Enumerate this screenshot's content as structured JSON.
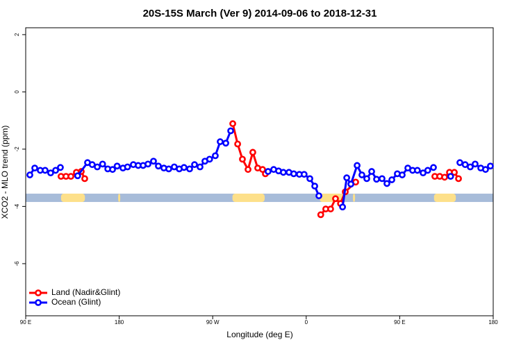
{
  "chart_data": {
    "type": "line",
    "title": "20S-15S March (Ver 9)   2014-09-06 to 2018-12-31",
    "xlabel": "Longitude (deg E)",
    "ylabel": "XCO2 - MLO trend (ppm)",
    "xlim": [
      90,
      540
    ],
    "ylim": [
      -7.82,
      2.24
    ],
    "xticks": [
      {
        "value": 90,
        "label": "90 E"
      },
      {
        "value": 180,
        "label": "180"
      },
      {
        "value": 270,
        "label": "90 W"
      },
      {
        "value": 360,
        "label": "0"
      },
      {
        "value": 450,
        "label": "90 E"
      },
      {
        "value": 540,
        "label": "180"
      }
    ],
    "yticks": [
      -6,
      -4,
      -2,
      0,
      2
    ],
    "legend": "bottom-left",
    "surface_strip": {
      "y": -3.7,
      "ocean_color": "#a7bcd9",
      "land_color": "#fde08a",
      "land_ranges": [
        [
          124,
          147
        ],
        [
          179,
          181
        ],
        [
          289,
          320
        ],
        [
          373,
          396
        ],
        [
          405,
          407
        ],
        [
          483,
          504
        ]
      ]
    },
    "series": [
      {
        "name": "Land (Nadir&Glint)",
        "color": "#ff0000",
        "x": [
          124,
          128.8,
          133.5,
          138.8,
          143.5,
          146.8,
          null,
          289.3,
          294,
          298.6,
          304,
          308.6,
          313.3,
          318,
          320.7,
          null,
          374,
          378.8,
          383.5,
          388.2,
          393,
          397.6,
          407.6,
          null,
          483.8,
          488.5,
          493.2,
          497.9,
          502.6,
          506.6
        ],
        "values": [
          -2.95,
          -2.95,
          -2.95,
          -2.81,
          -2.78,
          -3.03,
          null,
          -1.11,
          -1.82,
          -2.35,
          -2.71,
          -2.11,
          -2.66,
          -2.71,
          -2.86,
          null,
          -4.29,
          -4.09,
          -4.09,
          -3.73,
          -3.9,
          -3.49,
          -3.15,
          null,
          -2.95,
          -2.95,
          -2.98,
          -2.81,
          -2.81,
          -3.03
        ]
      },
      {
        "name": "Ocean (Glint)",
        "color": "#0000ff",
        "x": [
          94,
          98.7,
          104,
          108.7,
          114,
          118.8,
          123.4,
          null,
          140,
          149.5,
          154,
          158.9,
          164,
          169,
          173.6,
          178,
          183.6,
          188,
          193.6,
          198.3,
          203,
          207.7,
          213,
          217.7,
          223,
          227.7,
          233,
          237.8,
          242.4,
          247.8,
          252.5,
          257.8,
          262.5,
          267,
          272.5,
          277.2,
          282.6,
          287.3,
          null,
          323.3,
          328.7,
          333.4,
          338,
          343.4,
          348,
          353.4,
          358,
          363.5,
          368.2,
          372.2,
          null,
          395,
          399,
          403,
          409,
          413.6,
          418.3,
          423,
          427.7,
          433,
          437.7,
          442.4,
          447.7,
          452.4,
          457.8,
          462.4,
          467,
          472.5,
          477,
          482.5,
          null,
          499,
          null,
          507.9,
          513,
          517.9,
          522.6,
          528,
          532.6,
          537.3
        ],
        "values": [
          -2.9,
          -2.66,
          -2.74,
          -2.74,
          -2.83,
          -2.74,
          -2.64,
          null,
          -2.93,
          -2.47,
          -2.54,
          -2.62,
          -2.52,
          -2.69,
          -2.71,
          -2.59,
          -2.66,
          -2.62,
          -2.54,
          -2.57,
          -2.57,
          -2.52,
          -2.42,
          -2.59,
          -2.66,
          -2.69,
          -2.62,
          -2.69,
          -2.64,
          -2.69,
          -2.54,
          -2.62,
          -2.42,
          -2.35,
          -2.23,
          -1.74,
          -1.79,
          -1.36,
          null,
          -2.78,
          -2.71,
          -2.76,
          -2.81,
          -2.81,
          -2.86,
          -2.88,
          -2.88,
          -3.03,
          -3.29,
          -3.63,
          null,
          -4.02,
          -3.0,
          -3.22,
          -2.57,
          -2.9,
          -3.03,
          -2.78,
          -3.05,
          -3.03,
          -3.2,
          -3.07,
          -2.86,
          -2.9,
          -2.66,
          -2.74,
          -2.74,
          -2.83,
          -2.74,
          -2.64,
          null,
          -2.95,
          null,
          -2.47,
          -2.54,
          -2.62,
          -2.52,
          -2.66,
          -2.71,
          -2.59
        ]
      }
    ]
  }
}
